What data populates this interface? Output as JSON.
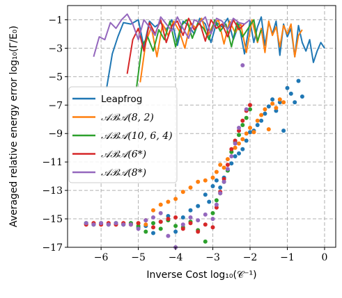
{
  "chart_data": {
    "type": "line",
    "xlabel": "Inverse Cost log₁₀(𝒞⁻¹)",
    "ylabel": "Averaged relative energy error log₁₀(Γ/E₀)",
    "xlim": [
      -6.9,
      0.3
    ],
    "ylim": [
      -17,
      0
    ],
    "xticks": [
      -6,
      -5,
      -4,
      -3,
      -2,
      -1,
      0
    ],
    "xtick_labels": [
      "−6",
      "−5",
      "−4",
      "−3",
      "−2",
      "−1",
      "0"
    ],
    "yticks": [
      -1,
      -3,
      -5,
      -7,
      -9,
      -11,
      -13,
      -15,
      -17
    ],
    "ytick_labels": [
      "−1",
      "−3",
      "−5",
      "−7",
      "−9",
      "−11",
      "−13",
      "−15",
      "−17"
    ],
    "grid": true,
    "grid_style": "dashed",
    "legend_placement": "center-left",
    "series": [
      {
        "name": "Leapfrog",
        "color": "#1f77b4",
        "line": {
          "x": [
            -5.85,
            -5.7,
            -5.55,
            -5.4,
            -5.2,
            -5.0,
            -4.85,
            -4.7,
            -4.55,
            -4.4,
            -4.25,
            -4.1,
            -3.95,
            -3.8,
            -3.65,
            -3.5,
            -3.35,
            -3.2,
            -3.05,
            -2.9,
            -2.75,
            -2.6,
            -2.45,
            -2.3,
            -2.15,
            -2.0,
            -1.9,
            -1.8,
            -1.7,
            -1.6,
            -1.5,
            -1.4,
            -1.3,
            -1.2,
            -1.1,
            -1.0,
            -0.9,
            -0.8,
            -0.7,
            -0.6,
            -0.5,
            -0.4,
            -0.3,
            -0.2,
            -0.1,
            0.0
          ],
          "y": [
            -5.8,
            -3.4,
            -2.2,
            -1.2,
            -1.3,
            -1.0,
            -2.9,
            -1.1,
            -1.5,
            -1.2,
            -1.7,
            -1.0,
            -2.8,
            -1.1,
            -1.4,
            -2.0,
            -0.9,
            -1.3,
            -2.6,
            -1.2,
            -1.5,
            -0.9,
            -2.4,
            -1.3,
            -3.4,
            -1.1,
            -2.6,
            -1.5,
            -0.8,
            -2.8,
            -1.2,
            -2.0,
            -1.1,
            -3.5,
            -1.3,
            -2.2,
            -1.6,
            -3.6,
            -1.4,
            -2.6,
            -3.2,
            -2.4,
            -4.0,
            -3.2,
            -2.6,
            -3.0
          ]
        },
        "points": {
          "x": [
            -6.4,
            -6.2,
            -6.0,
            -5.8,
            -5.6,
            -5.4,
            -5.2,
            -5.0,
            -4.8,
            -4.6,
            -4.4,
            -4.2,
            -4.0,
            -3.8,
            -3.6,
            -3.4,
            -3.2,
            -3.1,
            -3.0,
            -2.9,
            -2.8,
            -2.7,
            -2.6,
            -2.5,
            -2.4,
            -2.3,
            -2.2,
            -2.1,
            -2.0,
            -1.9,
            -1.8,
            -1.7,
            -1.6,
            -1.5,
            -1.4,
            -1.3,
            -1.2,
            -1.1,
            -1.0,
            -0.9,
            -0.8,
            -0.7,
            -0.6
          ],
          "y": [
            -15.3,
            -15.4,
            -15.3,
            -15.4,
            -15.3,
            -15.4,
            -15.3,
            -15.6,
            -15.5,
            -16.0,
            -15.2,
            -14.8,
            -15.9,
            -14.9,
            -14.4,
            -14.1,
            -13.3,
            -13.8,
            -12.7,
            -12.3,
            -12.8,
            -12.1,
            -11.6,
            -11.1,
            -10.6,
            -10.4,
            -10.1,
            -9.5,
            -8.9,
            -8.8,
            -8.4,
            -8.1,
            -7.6,
            -7.1,
            -6.6,
            -7.4,
            -6.8,
            -8.8,
            -5.8,
            -6.2,
            -6.8,
            -5.3,
            -6.4
          ]
        }
      },
      {
        "name": "𝒜ℬ𝒜(8, 2)",
        "color": "#ff7f0e",
        "line": {
          "x": [
            -4.95,
            -4.8,
            -4.65,
            -4.5,
            -4.35,
            -4.2,
            -4.05,
            -3.9,
            -3.75,
            -3.6,
            -3.45,
            -3.3,
            -3.15,
            -3.0,
            -2.85,
            -2.7,
            -2.55,
            -2.4,
            -2.25,
            -2.1,
            -1.95,
            -1.8,
            -1.7,
            -1.6,
            -1.5,
            -1.4,
            -1.3,
            -1.2,
            -1.1,
            -1.0,
            -0.9,
            -0.8,
            -0.7,
            -0.6
          ],
          "y": [
            -5.4,
            -2.6,
            -1.5,
            -3.6,
            -1.3,
            -2.1,
            -1.1,
            -1.8,
            -3.0,
            -1.2,
            -1.6,
            -0.9,
            -2.2,
            -1.4,
            -1.0,
            -2.7,
            -1.1,
            -1.9,
            -1.3,
            -3.3,
            -1.0,
            -2.6,
            -1.6,
            -3.3,
            -1.1,
            -2.1,
            -1.5,
            -2.9,
            -1.4,
            -2.0,
            -1.3,
            -3.6,
            -2.1,
            -1.7
          ]
        },
        "points": {
          "x": [
            -6.4,
            -6.2,
            -6.0,
            -5.8,
            -5.6,
            -5.4,
            -5.2,
            -5.0,
            -4.8,
            -4.6,
            -4.4,
            -4.2,
            -4.0,
            -3.8,
            -3.6,
            -3.4,
            -3.2,
            -3.0,
            -2.9,
            -2.8,
            -2.7,
            -2.6,
            -2.5,
            -2.4,
            -2.3,
            -2.2,
            -2.1,
            -2.0,
            -1.9,
            -1.8,
            -1.7,
            -1.6,
            -1.5,
            -1.4,
            -1.3,
            -1.2,
            -1.1
          ],
          "y": [
            -15.4,
            -15.3,
            -15.4,
            -15.3,
            -15.4,
            -15.3,
            -15.4,
            -15.3,
            -15.4,
            -14.4,
            -14.0,
            -13.8,
            -13.6,
            -13.1,
            -12.8,
            -12.4,
            -12.3,
            -12.1,
            -11.7,
            -11.2,
            -11.4,
            -10.8,
            -10.3,
            -10.0,
            -9.7,
            -9.4,
            -9.0,
            -8.6,
            -8.9,
            -8.1,
            -7.7,
            -7.3,
            -8.7,
            -6.9,
            -7.2,
            -6.6,
            -6.8
          ]
        }
      },
      {
        "name": "𝒜ℬ𝒜(10, 6, 4)",
        "color": "#2ca02c",
        "line": {
          "x": [
            -5.05,
            -4.9,
            -4.75,
            -4.6,
            -4.45,
            -4.3,
            -4.15,
            -4.0,
            -3.85,
            -3.7,
            -3.55,
            -3.4,
            -3.25,
            -3.1,
            -2.95,
            -2.8,
            -2.65,
            -2.5,
            -2.35,
            -2.2,
            -2.05,
            -1.9,
            -1.8,
            -1.7
          ],
          "y": [
            -5.8,
            -2.8,
            -2.2,
            -3.2,
            -1.7,
            -2.4,
            -1.1,
            -2.9,
            -1.4,
            -1.0,
            -2.3,
            -1.2,
            -1.6,
            -2.4,
            -1.0,
            -1.8,
            -1.3,
            -2.9,
            -1.2,
            -2.2,
            -1.6,
            -1.0,
            -2.5,
            -1.7
          ]
        },
        "points": {
          "x": [
            -6.4,
            -6.2,
            -6.0,
            -5.8,
            -5.6,
            -5.4,
            -5.2,
            -5.0,
            -4.8,
            -4.6,
            -4.4,
            -4.2,
            -4.0,
            -3.8,
            -3.6,
            -3.4,
            -3.2,
            -3.0,
            -2.9,
            -2.8,
            -2.7,
            -2.6,
            -2.5,
            -2.4,
            -2.3,
            -2.2,
            -2.1,
            -2.0
          ],
          "y": [
            -15.3,
            -15.4,
            -15.3,
            -15.4,
            -15.3,
            -15.4,
            -15.3,
            -15.5,
            -15.9,
            -15.3,
            -15.7,
            -15.1,
            -15.5,
            -15.6,
            -15.2,
            -15.8,
            -16.6,
            -14.6,
            -13.7,
            -13.2,
            -12.4,
            -11.6,
            -10.3,
            -9.6,
            -9.1,
            -8.4,
            -7.9,
            -7.3
          ]
        }
      },
      {
        "name": "𝒜ℬ𝒜(6*)",
        "color": "#d62728",
        "line": {
          "x": [
            -5.3,
            -5.15,
            -5.0,
            -4.85,
            -4.7,
            -4.55,
            -4.4,
            -4.25,
            -4.1,
            -3.95,
            -3.8,
            -3.65,
            -3.5,
            -3.35,
            -3.2,
            -3.05,
            -2.9,
            -2.75,
            -2.6,
            -2.45,
            -2.3,
            -2.15
          ],
          "y": [
            -4.8,
            -2.4,
            -1.6,
            -3.2,
            -1.2,
            -2.0,
            -1.0,
            -2.6,
            -1.4,
            -1.1,
            -2.1,
            -0.9,
            -1.7,
            -1.2,
            -2.5,
            -1.0,
            -1.6,
            -1.3,
            -2.2,
            -1.0,
            -1.7,
            -1.3
          ]
        },
        "points": {
          "x": [
            -6.4,
            -6.2,
            -6.0,
            -5.8,
            -5.6,
            -5.4,
            -5.2,
            -5.0,
            -4.8,
            -4.6,
            -4.4,
            -4.2,
            -4.0,
            -3.8,
            -3.6,
            -3.4,
            -3.2,
            -3.0,
            -2.9,
            -2.8,
            -2.7,
            -2.6,
            -2.5,
            -2.4,
            -2.3,
            -2.2,
            -2.1,
            -2.0
          ],
          "y": [
            -15.4,
            -15.3,
            -15.4,
            -15.3,
            -15.4,
            -15.3,
            -15.4,
            -15.3,
            -15.1,
            -15.6,
            -15.2,
            -15.0,
            -14.9,
            -15.7,
            -15.3,
            -15.9,
            -15.4,
            -15.6,
            -14.2,
            -13.1,
            -12.2,
            -11.2,
            -10.1,
            -9.5,
            -8.8,
            -8.1,
            -7.4,
            -7.0
          ]
        }
      },
      {
        "name": "𝒜ℬ𝒜(8*)",
        "color": "#9467bd",
        "line": {
          "x": [
            -6.2,
            -6.05,
            -5.9,
            -5.75,
            -5.6,
            -5.45,
            -5.3,
            -5.15,
            -5.0,
            -4.85,
            -4.7,
            -4.55,
            -4.4,
            -4.25,
            -4.1,
            -3.95,
            -3.8,
            -3.65,
            -3.5,
            -3.35,
            -3.2,
            -3.05,
            -2.9,
            -2.75,
            -2.6,
            -2.45,
            -2.3,
            -2.15,
            -2.0
          ],
          "y": [
            -3.6,
            -2.2,
            -2.4,
            -1.2,
            -1.6,
            -1.0,
            -0.6,
            -1.3,
            -2.4,
            -1.0,
            -1.5,
            -2.1,
            -0.8,
            -1.3,
            -1.8,
            -0.8,
            -1.6,
            -2.3,
            -1.0,
            -1.2,
            -0.8,
            -2.0,
            -0.9,
            -1.1,
            -1.7,
            -0.9,
            -1.2,
            -1.3,
            -1.0
          ]
        },
        "points": {
          "x": [
            -6.4,
            -6.2,
            -6.0,
            -5.8,
            -5.6,
            -5.4,
            -5.2,
            -5.0,
            -4.8,
            -4.6,
            -4.4,
            -4.2,
            -4.0,
            -3.8,
            -3.6,
            -3.4,
            -3.2,
            -3.0,
            -2.9,
            -2.8,
            -2.7,
            -2.6,
            -2.5,
            -2.4,
            -2.3,
            -2.2,
            -2.1
          ],
          "y": [
            -15.3,
            -15.4,
            -15.3,
            -15.4,
            -15.3,
            -15.4,
            -15.4,
            -15.7,
            -15.1,
            -14.9,
            -14.6,
            -16.2,
            -17.0,
            -15.4,
            -14.9,
            -15.1,
            -14.7,
            -15.0,
            -14.0,
            -13.2,
            -12.4,
            -11.5,
            -10.6,
            -9.7,
            -8.6,
            -4.2,
            -7.3
          ]
        }
      }
    ]
  }
}
